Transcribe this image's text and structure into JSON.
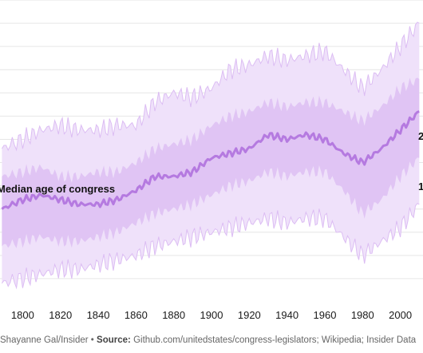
{
  "chart_data": {
    "type": "area",
    "x": [
      1789,
      1800,
      1810,
      1820,
      1830,
      1840,
      1850,
      1860,
      1870,
      1880,
      1890,
      1900,
      1910,
      1920,
      1930,
      1940,
      1950,
      1960,
      1970,
      1980,
      1990,
      2000,
      2010
    ],
    "series": [
      {
        "name": "",
        "band": "outer-upper",
        "values": [
          53,
          55,
          57,
          58,
          57,
          57,
          58,
          58,
          63,
          65,
          64,
          66,
          70,
          71,
          73,
          72,
          73,
          74,
          70,
          66,
          70,
          75,
          80
        ]
      },
      {
        "name": "",
        "band": "inner-upper",
        "values": [
          47,
          48,
          49,
          47,
          47,
          48,
          48,
          50,
          53,
          54,
          55,
          58,
          60,
          61,
          63,
          62,
          63,
          63,
          61,
          59,
          62,
          66,
          68
        ]
      },
      {
        "name": "Median age of congress",
        "band": "median",
        "values": [
          40,
          42,
          43,
          42,
          41,
          41,
          42,
          44,
          47,
          47,
          48,
          51,
          52,
          53,
          56,
          55,
          56,
          55,
          52,
          50,
          53,
          57,
          61
        ]
      },
      {
        "name": "",
        "band": "inner-lower",
        "values": [
          32,
          33,
          34,
          33,
          33,
          34,
          35,
          37,
          39,
          40,
          41,
          43,
          45,
          46,
          48,
          47,
          48,
          48,
          44,
          39,
          42,
          47,
          51
        ]
      },
      {
        "name": "",
        "band": "outer-lower",
        "values": [
          24,
          25,
          26,
          27,
          27,
          28,
          29,
          30,
          32,
          33,
          34,
          35,
          36,
          37,
          38,
          37,
          38,
          38,
          34,
          30,
          33,
          36,
          41
        ]
      }
    ],
    "xlim": [
      1788,
      2012
    ],
    "ylim": [
      20,
      85
    ],
    "x_ticks": [
      "1800",
      "1820",
      "1840",
      "1860",
      "1880",
      "1900",
      "1920",
      "1940",
      "1960",
      "1980",
      "2000"
    ],
    "annotations": [
      {
        "text": "Median age of congress"
      },
      {
        "text": "2"
      },
      {
        "text": "1"
      }
    ],
    "colors": {
      "outer_band": "#efe1fa",
      "inner_band": "#dcbdf3",
      "median_line": "#b57ae0",
      "gridline": "#e6e6e6"
    },
    "grid": true,
    "legend": "none"
  },
  "footer": {
    "credit_prefix": "Shayanne Gal/Insider •",
    "source_label": "Source:",
    "source_text": "Github.com/unitedstates/congress-legislators; Wikipedia; Insider Data"
  }
}
